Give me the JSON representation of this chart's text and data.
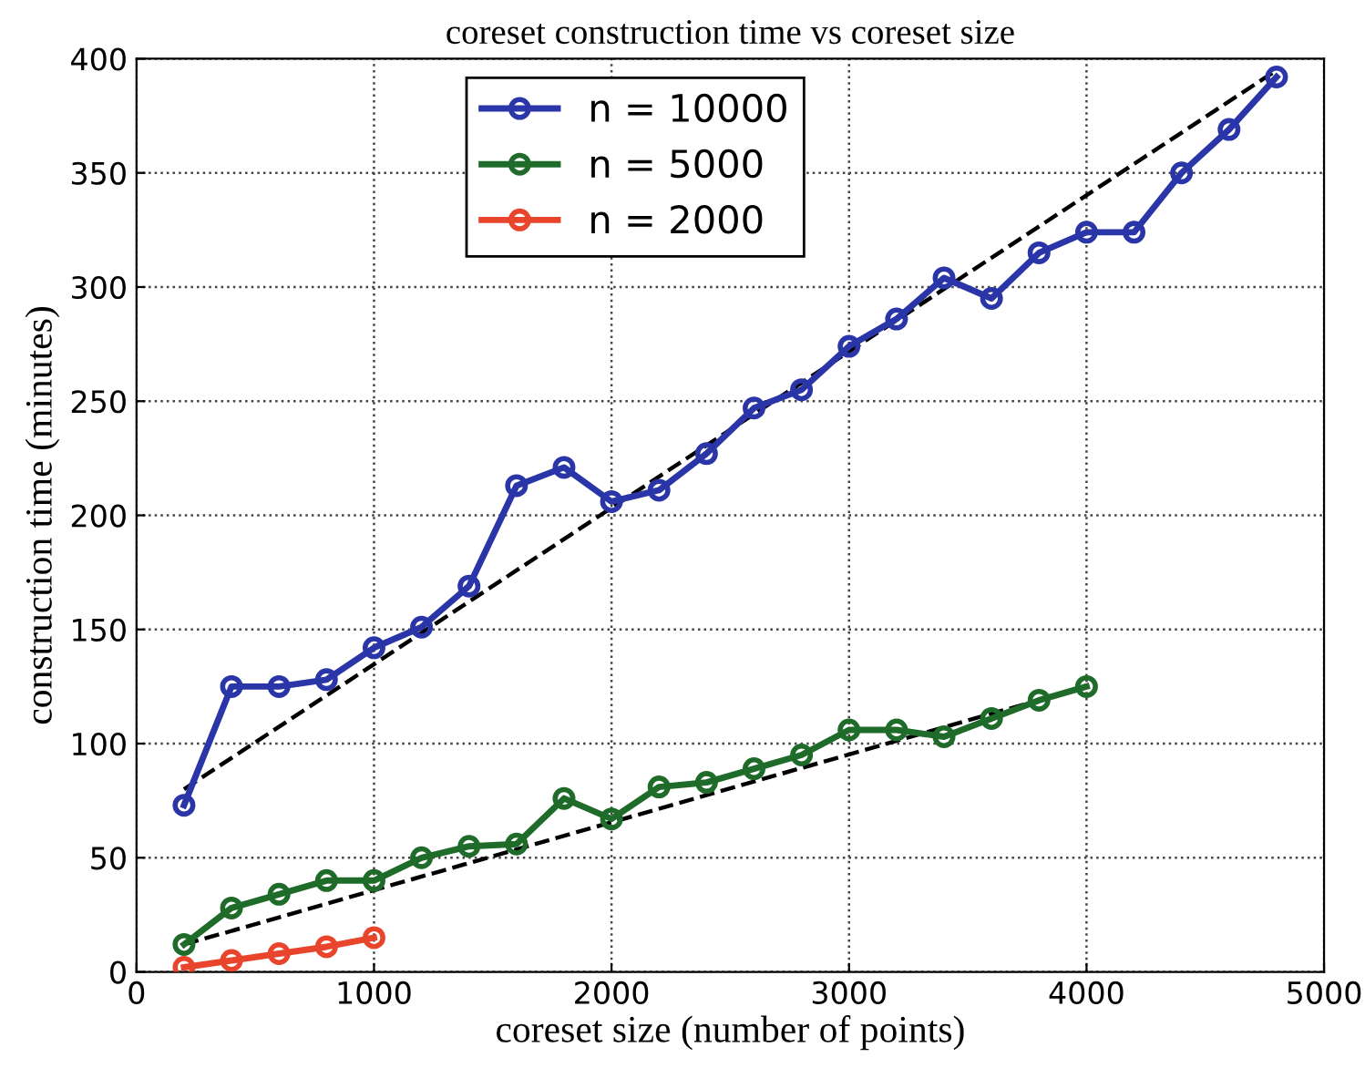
{
  "chart_data": {
    "type": "line",
    "title": "coreset construction time vs coreset size",
    "xlabel": "coreset size (number of points)",
    "ylabel": "construction time (minutes)",
    "xlim": [
      0,
      5000
    ],
    "xticks": [
      0,
      1000,
      2000,
      3000,
      4000,
      5000
    ],
    "ylim": [
      0,
      400
    ],
    "yticks": [
      0,
      50,
      100,
      150,
      200,
      250,
      300,
      350,
      400
    ],
    "grid": true,
    "legend": "top",
    "marker": "circle",
    "line_style": "solid",
    "series": [
      {
        "name": "n = 10000",
        "color": "#2a35a8",
        "x": [
          200,
          400,
          600,
          800,
          1000,
          1200,
          1400,
          1600,
          1800,
          2000,
          2200,
          2400,
          2600,
          2800,
          3000,
          3200,
          3400,
          3600,
          3800,
          4000,
          4200,
          4400,
          4600,
          4800
        ],
        "values": [
          73,
          125,
          125,
          128,
          142,
          151,
          169,
          213,
          221,
          206,
          211,
          227,
          247,
          255,
          274,
          286,
          304,
          295,
          315,
          324,
          324,
          350,
          369,
          392
        ]
      },
      {
        "name": "n = 5000",
        "color": "#1f6b2a",
        "x": [
          200,
          400,
          600,
          800,
          1000,
          1200,
          1400,
          1600,
          1800,
          2000,
          2200,
          2400,
          2600,
          2800,
          3000,
          3200,
          3400,
          3600,
          3800,
          4000
        ],
        "values": [
          12,
          28,
          34,
          40,
          40,
          50,
          55,
          56,
          76,
          67,
          81,
          83,
          89,
          95,
          106,
          106,
          103,
          111,
          119,
          125
        ]
      },
      {
        "name": "n = 2000",
        "color": "#e8452c",
        "x": [
          200,
          400,
          600,
          800,
          1000
        ],
        "values": [
          2,
          5,
          8,
          11,
          15
        ]
      },
      {
        "color": "#000000",
        "line_style": "dashed",
        "marker": "none",
        "x": [
          200,
          4800
        ],
        "values": [
          80,
          395
        ]
      },
      {
        "color": "#000000",
        "line_style": "dashed",
        "marker": "none",
        "x": [
          200,
          4000
        ],
        "values": [
          12,
          125
        ]
      }
    ]
  }
}
